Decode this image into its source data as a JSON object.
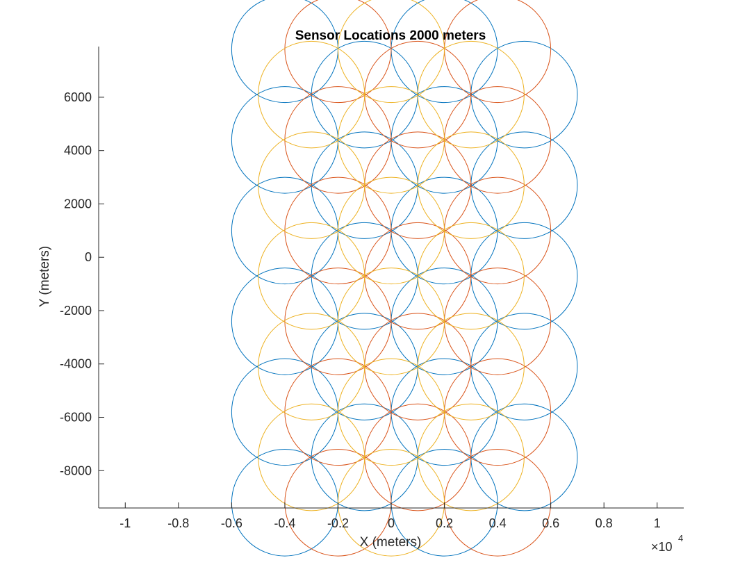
{
  "chart_data": {
    "type": "scatter",
    "title": "Sensor Locations 2000 meters",
    "xlabel": "X (meters)",
    "ylabel": "Y (meters)",
    "x_exponent_base": "×10",
    "x_exponent_power": "4",
    "xlim": [
      -1.1,
      1.1
    ],
    "ylim": [
      -9400,
      7900
    ],
    "x_tick_values": [
      -1,
      -0.8,
      -0.6,
      -0.4,
      -0.2,
      0,
      0.2,
      0.4,
      0.6,
      0.8,
      1
    ],
    "x_tick_labels": [
      "-1",
      "-0.8",
      "-0.6",
      "-0.4",
      "-0.2",
      "0",
      "0.2",
      "0.4",
      "0.6",
      "0.8",
      "1"
    ],
    "y_tick_values": [
      6000,
      4000,
      2000,
      0,
      -2000,
      -4000,
      -6000,
      -8000
    ],
    "y_tick_labels": [
      "6000",
      "4000",
      "2000",
      "0",
      "-2000",
      "-4000",
      "-6000",
      "-8000"
    ],
    "sensor_range_m": 2000,
    "series": [
      {
        "color": "#0072BD",
        "centers": [
          [
            -4000,
            7800
          ],
          [
            2000,
            7800
          ],
          [
            -1000,
            6100
          ],
          [
            5000,
            6100
          ],
          [
            -4000,
            4400
          ],
          [
            2000,
            4400
          ],
          [
            -1000,
            2700
          ],
          [
            5000,
            2700
          ],
          [
            -4000,
            1000
          ],
          [
            2000,
            1000
          ],
          [
            -1000,
            -700
          ],
          [
            5000,
            -700
          ],
          [
            -4000,
            -2400
          ],
          [
            2000,
            -2400
          ],
          [
            -1000,
            -4100
          ],
          [
            5000,
            -4100
          ],
          [
            -4000,
            -5800
          ],
          [
            2000,
            -5800
          ],
          [
            -1000,
            -7500
          ],
          [
            5000,
            -7500
          ],
          [
            -4000,
            -9200
          ],
          [
            2000,
            -9200
          ]
        ]
      },
      {
        "color": "#D95319",
        "centers": [
          [
            -2000,
            7800
          ],
          [
            4000,
            7800
          ],
          [
            1000,
            6100
          ],
          [
            -2000,
            4400
          ],
          [
            4000,
            4400
          ],
          [
            1000,
            2700
          ],
          [
            -2000,
            1000
          ],
          [
            4000,
            1000
          ],
          [
            1000,
            -700
          ],
          [
            -2000,
            -2400
          ],
          [
            4000,
            -2400
          ],
          [
            1000,
            -4100
          ],
          [
            -2000,
            -5800
          ],
          [
            4000,
            -5800
          ],
          [
            1000,
            -7500
          ],
          [
            -2000,
            -9200
          ],
          [
            4000,
            -9200
          ]
        ]
      },
      {
        "color": "#EDB120",
        "centers": [
          [
            0,
            7800
          ],
          [
            -3000,
            6100
          ],
          [
            3000,
            6100
          ],
          [
            0,
            4400
          ],
          [
            -3000,
            2700
          ],
          [
            3000,
            2700
          ],
          [
            0,
            1000
          ],
          [
            -3000,
            -700
          ],
          [
            3000,
            -700
          ],
          [
            0,
            -2400
          ],
          [
            -3000,
            -4100
          ],
          [
            3000,
            -4100
          ],
          [
            0,
            -5800
          ],
          [
            -3000,
            -7500
          ],
          [
            3000,
            -7500
          ],
          [
            0,
            -9200
          ]
        ]
      }
    ]
  }
}
